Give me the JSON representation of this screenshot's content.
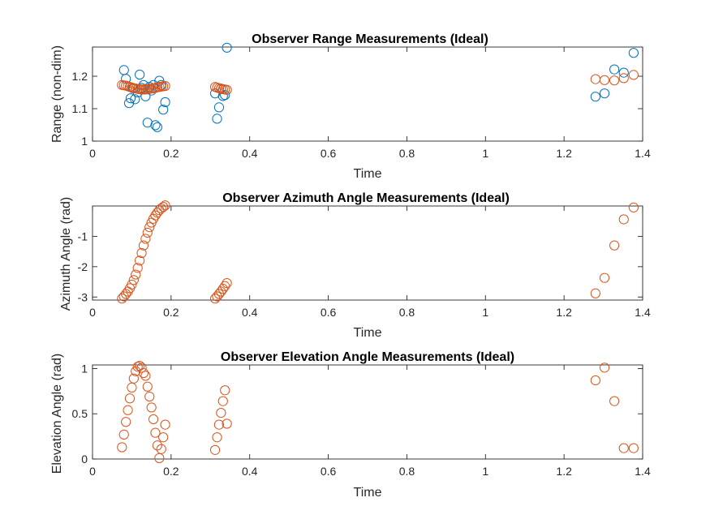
{
  "chart_data": [
    {
      "type": "scatter",
      "title": "Observer Range Measurements (Ideal)",
      "xlabel": "Time",
      "ylabel": "Range (non-dim)",
      "xlim": [
        0,
        1.4
      ],
      "ylim": [
        1,
        1.29
      ],
      "xticks": [
        0,
        0.2,
        0.4,
        0.6,
        0.8,
        1,
        1.2,
        1.4
      ],
      "xticklabels": [
        "0",
        "0.2",
        "0.4",
        "0.6",
        "0.8",
        "1",
        "1.2",
        "1.4"
      ],
      "yticks": [
        1,
        1.1,
        1.2
      ],
      "yticklabels": [
        "1",
        "1.1",
        "1.2"
      ],
      "grid": false,
      "series": [
        {
          "color": "#0072BD",
          "marker": "circle",
          "x": [
            0.08,
            0.085,
            0.093,
            0.097,
            0.103,
            0.108,
            0.115,
            0.12,
            0.125,
            0.13,
            0.135,
            0.14,
            0.145,
            0.15,
            0.155,
            0.16,
            0.165,
            0.17,
            0.175,
            0.18,
            0.185,
            0.312,
            0.317,
            0.322,
            0.327,
            0.332,
            0.337,
            0.342,
            1.28,
            1.303,
            1.328,
            1.352,
            1.377
          ],
          "y": [
            1.219,
            1.192,
            1.117,
            1.132,
            1.163,
            1.129,
            1.15,
            1.205,
            1.164,
            1.173,
            1.138,
            1.057,
            1.167,
            1.156,
            1.173,
            1.049,
            1.043,
            1.186,
            1.173,
            1.097,
            1.12,
            1.147,
            1.069,
            1.104,
            1.162,
            1.139,
            1.142,
            1.288,
            1.137,
            1.147,
            1.221,
            1.211,
            1.272
          ]
        },
        {
          "color": "#D95319",
          "marker": "circle",
          "x": [
            0.075,
            0.08,
            0.085,
            0.09,
            0.095,
            0.1,
            0.105,
            0.11,
            0.115,
            0.12,
            0.125,
            0.13,
            0.135,
            0.14,
            0.145,
            0.15,
            0.155,
            0.16,
            0.165,
            0.17,
            0.175,
            0.18,
            0.185,
            0.312,
            0.317,
            0.322,
            0.327,
            0.332,
            0.337,
            0.342,
            1.28,
            1.303,
            1.328,
            1.352,
            1.377
          ],
          "y": [
            1.173,
            1.172,
            1.171,
            1.169,
            1.167,
            1.165,
            1.163,
            1.162,
            1.161,
            1.16,
            1.159,
            1.159,
            1.159,
            1.16,
            1.161,
            1.162,
            1.163,
            1.164,
            1.166,
            1.167,
            1.168,
            1.169,
            1.17,
            1.167,
            1.165,
            1.163,
            1.161,
            1.16,
            1.159,
            1.158,
            1.191,
            1.188,
            1.187,
            1.194,
            1.204
          ]
        }
      ]
    },
    {
      "type": "scatter",
      "title": "Observer Azimuth Angle Measurements (Ideal)",
      "xlabel": "Time",
      "ylabel": "Azimuth Angle (rad)",
      "xlim": [
        0,
        1.4
      ],
      "ylim": [
        -3.1,
        0
      ],
      "xticks": [
        0,
        0.2,
        0.4,
        0.6,
        0.8,
        1,
        1.2,
        1.4
      ],
      "xticklabels": [
        "0",
        "0.2",
        "0.4",
        "0.6",
        "0.8",
        "1",
        "1.2",
        "1.4"
      ],
      "yticks": [
        -3,
        -2,
        -1
      ],
      "yticklabels": [
        "-3",
        "-2",
        "-1"
      ],
      "grid": false,
      "series": [
        {
          "color": "#D95319",
          "marker": "circle",
          "x": [
            0.075,
            0.08,
            0.085,
            0.09,
            0.095,
            0.1,
            0.105,
            0.11,
            0.115,
            0.12,
            0.125,
            0.13,
            0.135,
            0.14,
            0.145,
            0.15,
            0.155,
            0.16,
            0.165,
            0.17,
            0.175,
            0.18,
            0.185,
            0.312,
            0.317,
            0.322,
            0.327,
            0.332,
            0.337,
            0.342,
            1.28,
            1.303,
            1.328,
            1.352,
            1.377
          ],
          "y": [
            -3.05,
            -2.98,
            -2.9,
            -2.82,
            -2.71,
            -2.59,
            -2.44,
            -2.26,
            -2.04,
            -1.8,
            -1.55,
            -1.3,
            -1.08,
            -0.88,
            -0.7,
            -0.55,
            -0.42,
            -0.31,
            -0.22,
            -0.14,
            -0.08,
            -0.03,
            0.02,
            -3.05,
            -2.98,
            -2.9,
            -2.82,
            -2.73,
            -2.64,
            -2.54,
            -2.88,
            -2.37,
            -1.3,
            -0.44,
            -0.05
          ]
        }
      ]
    },
    {
      "type": "scatter",
      "title": "Observer Elevation Angle Measurements (Ideal)",
      "xlabel": "Time",
      "ylabel": "Elevation Angle (rad)",
      "xlim": [
        0,
        1.4
      ],
      "ylim": [
        0,
        1.04
      ],
      "xticks": [
        0,
        0.2,
        0.4,
        0.6,
        0.8,
        1,
        1.2,
        1.4
      ],
      "xticklabels": [
        "0",
        "0.2",
        "0.4",
        "0.6",
        "0.8",
        "1",
        "1.2",
        "1.4"
      ],
      "yticks": [
        0,
        0.5,
        1
      ],
      "yticklabels": [
        "0",
        "0.5",
        "1"
      ],
      "grid": false,
      "series": [
        {
          "color": "#D95319",
          "marker": "circle",
          "x": [
            0.075,
            0.08,
            0.085,
            0.09,
            0.095,
            0.1,
            0.105,
            0.11,
            0.115,
            0.12,
            0.125,
            0.13,
            0.135,
            0.14,
            0.145,
            0.15,
            0.155,
            0.16,
            0.165,
            0.17,
            0.175,
            0.18,
            0.185,
            0.312,
            0.317,
            0.322,
            0.327,
            0.332,
            0.337,
            0.342,
            1.28,
            1.303,
            1.328,
            1.352,
            1.377
          ],
          "y": [
            0.13,
            0.27,
            0.41,
            0.54,
            0.67,
            0.79,
            0.89,
            0.97,
            1.02,
            1.03,
            1.01,
            0.95,
            0.92,
            0.8,
            0.69,
            0.57,
            0.44,
            0.29,
            0.15,
            0.01,
            0.11,
            0.24,
            0.38,
            0.1,
            0.24,
            0.38,
            0.51,
            0.64,
            0.76,
            0.39,
            0.87,
            1.01,
            0.64,
            0.12,
            0.12
          ]
        }
      ]
    }
  ]
}
